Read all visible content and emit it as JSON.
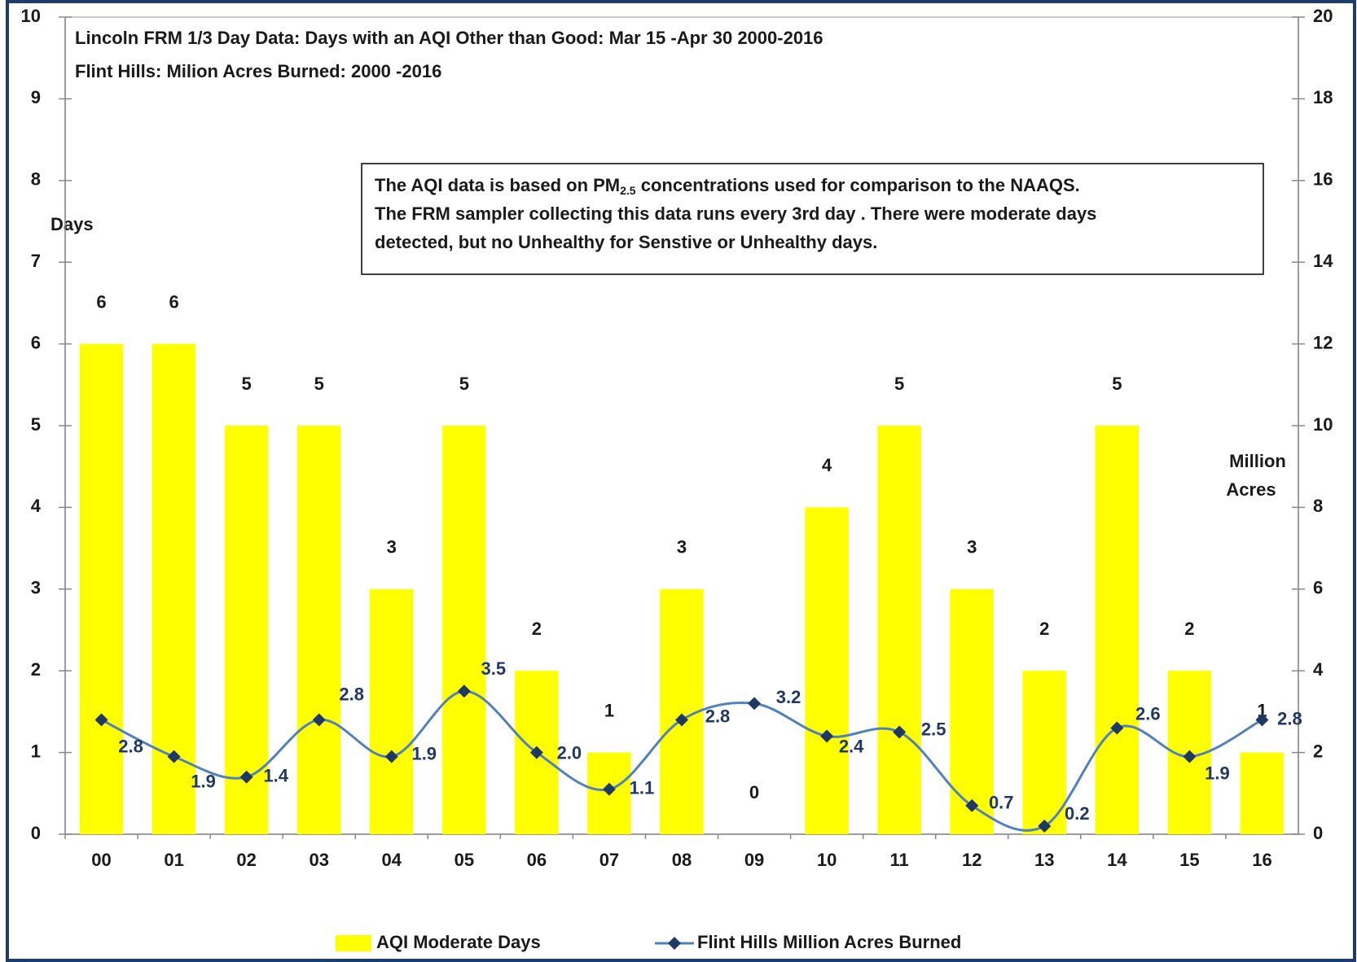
{
  "chart_data": {
    "type": "bar_line",
    "title": [
      "Lincoln FRM 1/3 Day Data:  Days with an AQI Other than  Good: Mar 15 -Apr 30 2000-2016",
      "Flint Hills: Milion Acres Burned: 2000  -2016"
    ],
    "ylabel": "Days",
    "y2label": [
      "Million",
      "Acres"
    ],
    "annotation": [
      [
        "The AQI data is based on PM",
        "2.5",
        " concentrations used for comparison to the NAAQS."
      ],
      [
        "The FRM sampler collecting this data runs every 3rd day .  There were moderate days"
      ],
      [
        "detected, but no Unhealthy for Senstive or Unhealthy days."
      ]
    ],
    "categories": [
      "00",
      "01",
      "02",
      "03",
      "04",
      "05",
      "06",
      "07",
      "08",
      "09",
      "10",
      "11",
      "12",
      "13",
      "14",
      "15",
      "16"
    ],
    "series": [
      {
        "name": "AQI Moderate Days",
        "color": "#ffff00",
        "kind": "bar",
        "values": [
          6,
          6,
          5,
          5,
          3,
          5,
          2,
          1,
          3,
          0,
          4,
          5,
          3,
          2,
          5,
          2,
          1
        ]
      },
      {
        "name": "Flint Hills Million Acres Burned",
        "color": "#4f81bd",
        "kind": "line",
        "axis": "y2",
        "marker_color": "#1f3864",
        "values": [
          2.8,
          1.9,
          1.4,
          2.8,
          1.9,
          3.5,
          2.0,
          1.1,
          2.8,
          3.2,
          2.4,
          2.5,
          0.7,
          0.2,
          2.6,
          1.9,
          2.8
        ],
        "value_labels": [
          "2.8",
          "1.9",
          "1.4",
          "2.8",
          "1.9",
          "3.5",
          "2.0",
          "1.1",
          "2.8",
          "3.2",
          "2.4",
          "2.5",
          "0.7",
          "0.2",
          "2.6",
          "1.9",
          "2.8"
        ]
      }
    ],
    "ylim": [
      0,
      10
    ],
    "yticks": [
      0,
      1,
      2,
      3,
      4,
      5,
      6,
      7,
      8,
      9,
      10
    ],
    "y2lim": [
      0,
      20
    ],
    "y2ticks": [
      0,
      2,
      4,
      6,
      8,
      10,
      12,
      14,
      16,
      18,
      20
    ],
    "grid": false,
    "legend": "bottom"
  }
}
